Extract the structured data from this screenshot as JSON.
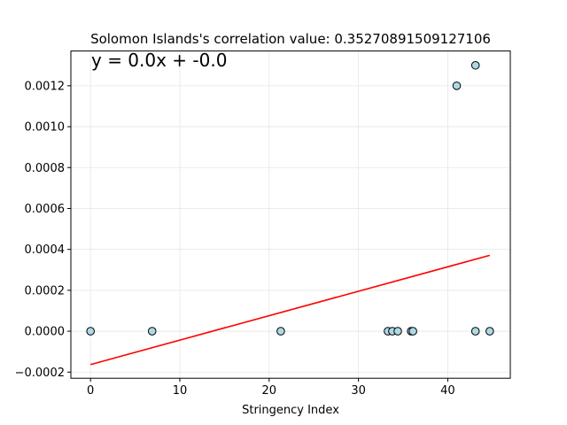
{
  "chart_data": {
    "type": "scatter",
    "title": "Solomon Islands's correlation value: 0.35270891509127106",
    "xlabel": "Stringency Index",
    "ylabel": "",
    "annotation": "y = 0.0x + -0.0",
    "xlim": [
      -2.2,
      47.0
    ],
    "ylim": [
      -0.00023,
      0.00137
    ],
    "xticks": [
      0,
      10,
      20,
      30,
      40
    ],
    "xtick_labels": [
      "0",
      "10",
      "20",
      "30",
      "40"
    ],
    "yticks": [
      -0.0002,
      0.0,
      0.0002,
      0.0004,
      0.0006,
      0.0008,
      0.001,
      0.0012
    ],
    "ytick_labels": [
      "−0.0002",
      "0.0000",
      "0.0002",
      "0.0004",
      "0.0006",
      "0.0008",
      "0.0010",
      "0.0012"
    ],
    "grid": true,
    "points": [
      {
        "x": 0.0,
        "y": 0.0
      },
      {
        "x": 6.9,
        "y": 0.0
      },
      {
        "x": 21.3,
        "y": 0.0
      },
      {
        "x": 33.3,
        "y": 0.0
      },
      {
        "x": 33.8,
        "y": 0.0
      },
      {
        "x": 34.4,
        "y": 0.0
      },
      {
        "x": 35.9,
        "y": 0.0
      },
      {
        "x": 36.1,
        "y": 0.0
      },
      {
        "x": 41.0,
        "y": 0.0012
      },
      {
        "x": 43.1,
        "y": 0.0013
      },
      {
        "x": 43.1,
        "y": 0.0
      },
      {
        "x": 44.7,
        "y": 0.0
      }
    ],
    "trendline": {
      "x": [
        0.0,
        44.7
      ],
      "y": [
        -0.000163,
        0.000371
      ]
    },
    "colors": {
      "marker_fill": "#add8e6",
      "marker_edge": "#000000",
      "trendline": "#ff0000",
      "grid": "#e6e6e6"
    }
  }
}
